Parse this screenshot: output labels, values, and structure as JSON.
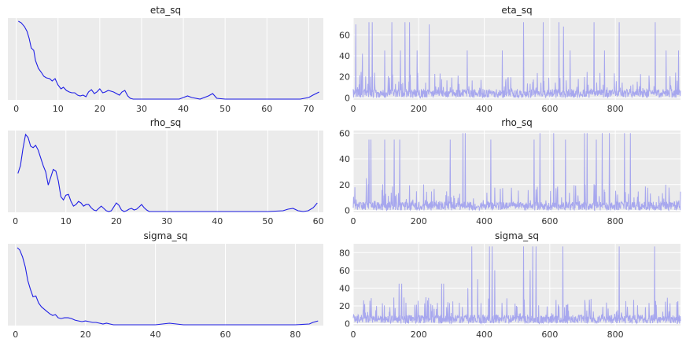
{
  "chart_data": [
    {
      "type": "line",
      "subtype": "density",
      "title": "eta_sq",
      "xlim": [
        -2,
        73.5
      ],
      "xticks": [
        0,
        10,
        20,
        30,
        40,
        50,
        60,
        70
      ],
      "yticks_visible": false,
      "grid": true,
      "color": "#1f1fe6",
      "x": [
        0.5,
        1.2,
        2,
        2.6,
        3.1,
        3.6,
        4.2,
        4.6,
        5.3,
        6,
        6.6,
        7.2,
        8,
        8.6,
        9.3,
        10,
        10.7,
        11.3,
        12,
        12.7,
        13.3,
        14,
        14.7,
        15.3,
        16,
        16.7,
        17.3,
        18,
        18.7,
        19.3,
        20,
        20.7,
        21.3,
        22,
        22.7,
        23.3,
        24,
        24.7,
        25.3,
        26,
        26.7,
        27.3,
        28,
        30,
        35,
        39,
        40,
        41,
        42,
        44,
        46,
        47,
        48,
        50,
        60,
        68,
        70,
        71,
        72.5
      ],
      "y": [
        1.0,
        0.98,
        0.93,
        0.87,
        0.78,
        0.66,
        0.63,
        0.5,
        0.4,
        0.35,
        0.3,
        0.28,
        0.27,
        0.24,
        0.27,
        0.19,
        0.14,
        0.16,
        0.12,
        0.1,
        0.09,
        0.09,
        0.06,
        0.05,
        0.06,
        0.04,
        0.1,
        0.13,
        0.08,
        0.1,
        0.14,
        0.09,
        0.1,
        0.12,
        0.11,
        0.1,
        0.08,
        0.06,
        0.1,
        0.12,
        0.05,
        0.02,
        0.01,
        0.01,
        0.01,
        0.01,
        0.03,
        0.05,
        0.03,
        0.01,
        0.05,
        0.08,
        0.02,
        0.01,
        0.01,
        0.01,
        0.03,
        0.06,
        0.1
      ],
      "ylim": [
        0,
        1.04
      ]
    },
    {
      "type": "line",
      "subtype": "trace",
      "title": "eta_sq",
      "xlim": [
        0,
        999
      ],
      "xticks": [
        0,
        200,
        400,
        600,
        800
      ],
      "ylim": [
        -2,
        76
      ],
      "yticks": [
        0,
        20,
        40,
        60
      ],
      "grid": true,
      "color": "#a7a7ee",
      "n_draws": 1000,
      "spikes": [
        {
          "x": 8,
          "y": 70
        },
        {
          "x": 28,
          "y": 42
        },
        {
          "x": 48,
          "y": 72
        },
        {
          "x": 58,
          "y": 72
        },
        {
          "x": 96,
          "y": 45
        },
        {
          "x": 118,
          "y": 72
        },
        {
          "x": 144,
          "y": 45
        },
        {
          "x": 158,
          "y": 72
        },
        {
          "x": 172,
          "y": 72
        },
        {
          "x": 195,
          "y": 45
        },
        {
          "x": 232,
          "y": 70
        },
        {
          "x": 348,
          "y": 45
        },
        {
          "x": 455,
          "y": 45
        },
        {
          "x": 520,
          "y": 72
        },
        {
          "x": 580,
          "y": 72
        },
        {
          "x": 628,
          "y": 72
        },
        {
          "x": 642,
          "y": 68
        },
        {
          "x": 662,
          "y": 45
        },
        {
          "x": 735,
          "y": 72
        },
        {
          "x": 767,
          "y": 45
        },
        {
          "x": 812,
          "y": 72
        },
        {
          "x": 922,
          "y": 72
        },
        {
          "x": 955,
          "y": 45
        },
        {
          "x": 993,
          "y": 45
        }
      ]
    },
    {
      "type": "line",
      "subtype": "density",
      "title": "rho_sq",
      "xlim": [
        -1.5,
        61
      ],
      "xticks": [
        0,
        10,
        20,
        30,
        40,
        50,
        60
      ],
      "yticks_visible": false,
      "grid": true,
      "color": "#1f1fe6",
      "x": [
        0.5,
        1,
        1.5,
        2,
        2.5,
        3,
        3.5,
        4,
        4.5,
        5,
        5.5,
        6,
        6.5,
        7,
        7.5,
        8,
        8.5,
        9,
        9.5,
        10,
        10.5,
        11,
        11.5,
        12,
        12.5,
        13,
        13.5,
        14,
        14.5,
        15,
        15.5,
        16,
        16.5,
        17,
        17.5,
        18,
        18.5,
        19,
        19.5,
        20,
        20.5,
        21,
        21.5,
        22,
        22.5,
        23,
        23.5,
        24,
        24.5,
        25,
        25.5,
        26,
        26.5,
        27,
        28,
        30,
        40,
        50,
        53,
        54,
        55,
        56,
        57,
        58,
        59,
        59.8
      ],
      "y": [
        0.5,
        0.6,
        0.82,
        1.0,
        0.96,
        0.85,
        0.83,
        0.86,
        0.8,
        0.7,
        0.6,
        0.52,
        0.35,
        0.45,
        0.55,
        0.53,
        0.4,
        0.2,
        0.16,
        0.22,
        0.23,
        0.14,
        0.08,
        0.1,
        0.14,
        0.12,
        0.08,
        0.1,
        0.1,
        0.06,
        0.03,
        0.02,
        0.05,
        0.08,
        0.05,
        0.02,
        0.01,
        0.02,
        0.07,
        0.12,
        0.09,
        0.03,
        0.01,
        0.02,
        0.04,
        0.05,
        0.03,
        0.04,
        0.07,
        0.1,
        0.06,
        0.03,
        0.01,
        0.01,
        0.01,
        0.01,
        0.01,
        0.01,
        0.02,
        0.04,
        0.05,
        0.02,
        0.01,
        0.02,
        0.06,
        0.12
      ],
      "ylim": [
        0,
        1.05
      ]
    },
    {
      "type": "line",
      "subtype": "trace",
      "title": "rho_sq",
      "xlim": [
        0,
        999
      ],
      "xticks": [
        0,
        200,
        400,
        600,
        800
      ],
      "ylim": [
        -1.5,
        62
      ],
      "yticks": [
        0,
        20,
        40,
        60
      ],
      "grid": true,
      "color": "#a7a7ee",
      "n_draws": 1000,
      "spikes": [
        {
          "x": 40,
          "y": 25
        },
        {
          "x": 48,
          "y": 55
        },
        {
          "x": 54,
          "y": 55
        },
        {
          "x": 96,
          "y": 55
        },
        {
          "x": 125,
          "y": 55
        },
        {
          "x": 142,
          "y": 55
        },
        {
          "x": 296,
          "y": 55
        },
        {
          "x": 335,
          "y": 60
        },
        {
          "x": 342,
          "y": 60
        },
        {
          "x": 420,
          "y": 55
        },
        {
          "x": 552,
          "y": 55
        },
        {
          "x": 570,
          "y": 60
        },
        {
          "x": 612,
          "y": 60
        },
        {
          "x": 648,
          "y": 55
        },
        {
          "x": 706,
          "y": 60
        },
        {
          "x": 714,
          "y": 60
        },
        {
          "x": 742,
          "y": 55
        },
        {
          "x": 760,
          "y": 60
        },
        {
          "x": 782,
          "y": 60
        },
        {
          "x": 828,
          "y": 60
        },
        {
          "x": 846,
          "y": 60
        }
      ]
    },
    {
      "type": "line",
      "subtype": "density",
      "title": "sigma_sq",
      "xlim": [
        -2.2,
        88
      ],
      "xticks": [
        0,
        20,
        40,
        60,
        80
      ],
      "yticks_visible": false,
      "grid": true,
      "color": "#1f1fe6",
      "x": [
        0.5,
        1.2,
        2,
        2.8,
        3.5,
        4.2,
        5,
        5.8,
        6.6,
        7.4,
        8.2,
        9,
        9.8,
        10.6,
        11.4,
        12.2,
        13,
        14,
        15,
        16,
        17,
        18,
        19,
        20,
        21,
        22,
        23,
        24,
        25,
        26,
        27,
        28,
        30,
        35,
        40,
        42,
        44,
        46,
        48,
        50,
        60,
        70,
        80,
        84,
        85,
        86.5
      ],
      "y": [
        1.0,
        0.97,
        0.88,
        0.75,
        0.58,
        0.47,
        0.37,
        0.38,
        0.29,
        0.24,
        0.21,
        0.18,
        0.15,
        0.13,
        0.14,
        0.1,
        0.09,
        0.1,
        0.1,
        0.09,
        0.07,
        0.06,
        0.05,
        0.06,
        0.05,
        0.04,
        0.04,
        0.03,
        0.02,
        0.03,
        0.02,
        0.01,
        0.01,
        0.01,
        0.01,
        0.02,
        0.03,
        0.02,
        0.01,
        0.01,
        0.01,
        0.01,
        0.01,
        0.02,
        0.04,
        0.06
      ],
      "ylim": [
        0,
        1.05
      ]
    },
    {
      "type": "line",
      "subtype": "trace",
      "title": "sigma_sq",
      "xlim": [
        0,
        999
      ],
      "xticks": [
        0,
        200,
        400,
        600,
        800
      ],
      "ylim": [
        -2.2,
        90
      ],
      "yticks": [
        0,
        20,
        40,
        60,
        80
      ],
      "grid": true,
      "color": "#a7a7ee",
      "n_draws": 1000,
      "spikes": [
        {
          "x": 140,
          "y": 45
        },
        {
          "x": 148,
          "y": 45
        },
        {
          "x": 270,
          "y": 45
        },
        {
          "x": 276,
          "y": 45
        },
        {
          "x": 350,
          "y": 40
        },
        {
          "x": 362,
          "y": 87
        },
        {
          "x": 380,
          "y": 50
        },
        {
          "x": 416,
          "y": 87
        },
        {
          "x": 424,
          "y": 87
        },
        {
          "x": 432,
          "y": 60
        },
        {
          "x": 520,
          "y": 87
        },
        {
          "x": 540,
          "y": 60
        },
        {
          "x": 548,
          "y": 87
        },
        {
          "x": 558,
          "y": 87
        },
        {
          "x": 640,
          "y": 87
        },
        {
          "x": 812,
          "y": 87
        },
        {
          "x": 920,
          "y": 87
        }
      ]
    }
  ]
}
